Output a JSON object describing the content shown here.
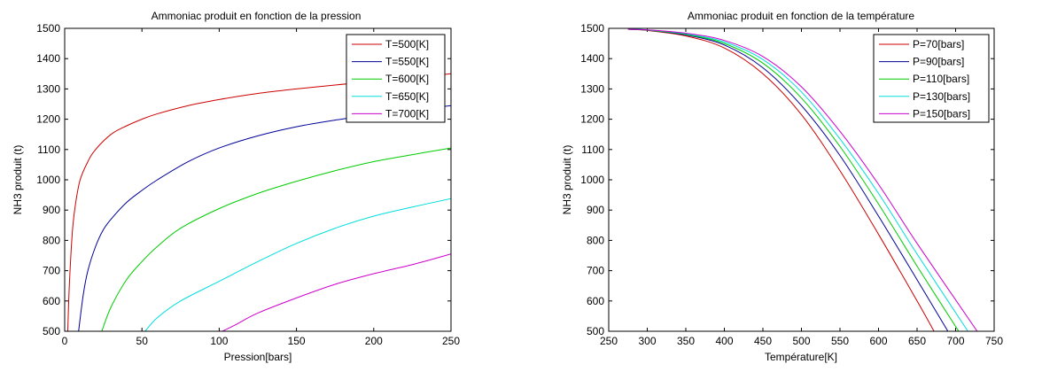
{
  "chart_data": [
    {
      "type": "line",
      "title": "Ammoniac produit en fonction de la pression",
      "xlabel": "Pression[bars]",
      "ylabel": "NH3 produit (t)",
      "xlim": [
        0,
        250
      ],
      "ylim": [
        500,
        1500
      ],
      "xticks": [
        "0",
        "50",
        "100",
        "150",
        "200",
        "250"
      ],
      "yticks": [
        "500",
        "600",
        "700",
        "800",
        "900",
        "1000",
        "1100",
        "1200",
        "1300",
        "1400",
        "1500"
      ],
      "legend_position": "top-right",
      "series": [
        {
          "name": "T=500[K]",
          "color": "#cc0000",
          "x": [
            2,
            3,
            5,
            7,
            10,
            15,
            20,
            30,
            40,
            50,
            60,
            80,
            100,
            125,
            150,
            175,
            200,
            225,
            250
          ],
          "y": [
            500,
            650,
            830,
            920,
            1000,
            1060,
            1100,
            1150,
            1178,
            1200,
            1218,
            1245,
            1265,
            1285,
            1300,
            1313,
            1325,
            1337,
            1350
          ]
        },
        {
          "name": "T=550[K]",
          "color": "#000099",
          "x": [
            9,
            12,
            15,
            20,
            25,
            30,
            40,
            50,
            60,
            80,
            100,
            125,
            150,
            175,
            200,
            225,
            250
          ],
          "y": [
            500,
            620,
            700,
            780,
            835,
            870,
            925,
            965,
            1000,
            1060,
            1105,
            1145,
            1175,
            1197,
            1215,
            1230,
            1245
          ]
        },
        {
          "name": "T=600[K]",
          "color": "#00cc00",
          "x": [
            24,
            30,
            40,
            50,
            60,
            75,
            100,
            125,
            150,
            175,
            200,
            225,
            250
          ],
          "y": [
            500,
            580,
            670,
            730,
            780,
            840,
            905,
            955,
            995,
            1030,
            1060,
            1083,
            1105
          ]
        },
        {
          "name": "T=650[K]",
          "color": "#00dddd",
          "x": [
            52,
            60,
            75,
            100,
            125,
            150,
            175,
            200,
            225,
            250
          ],
          "y": [
            500,
            545,
            600,
            665,
            730,
            790,
            840,
            880,
            910,
            938
          ]
        },
        {
          "name": "T=700[K]",
          "color": "#cc00cc",
          "x": [
            102,
            110,
            125,
            150,
            175,
            200,
            225,
            250
          ],
          "y": [
            500,
            520,
            560,
            610,
            655,
            690,
            720,
            755
          ]
        }
      ]
    },
    {
      "type": "line",
      "title": "Ammoniac produit en fonction de la température",
      "xlabel": "Température[K]",
      "ylabel": "NH3 produit (t)",
      "xlim": [
        250,
        750
      ],
      "ylim": [
        500,
        1500
      ],
      "xticks": [
        "250",
        "300",
        "350",
        "400",
        "450",
        "500",
        "550",
        "600",
        "650",
        "700",
        "750"
      ],
      "yticks": [
        "500",
        "600",
        "700",
        "800",
        "900",
        "1000",
        "1100",
        "1200",
        "1300",
        "1400",
        "1500"
      ],
      "legend_position": "top-right",
      "series": [
        {
          "name": "P=70[bars]",
          "color": "#cc0000",
          "x": [
            275,
            300,
            350,
            400,
            450,
            500,
            550,
            600,
            650,
            672
          ],
          "y": [
            1497,
            1493,
            1475,
            1435,
            1350,
            1215,
            1030,
            820,
            600,
            500
          ]
        },
        {
          "name": "P=90[bars]",
          "color": "#000099",
          "x": [
            275,
            300,
            350,
            400,
            450,
            500,
            550,
            600,
            650,
            690
          ],
          "y": [
            1497,
            1494,
            1478,
            1445,
            1370,
            1245,
            1080,
            880,
            670,
            500
          ]
        },
        {
          "name": "P=110[bars]",
          "color": "#00cc00",
          "x": [
            275,
            300,
            350,
            400,
            450,
            500,
            550,
            600,
            650,
            704
          ],
          "y": [
            1497,
            1494,
            1480,
            1450,
            1385,
            1270,
            1110,
            920,
            715,
            500
          ]
        },
        {
          "name": "P=130[bars]",
          "color": "#00dddd",
          "x": [
            275,
            300,
            350,
            400,
            450,
            500,
            550,
            600,
            650,
            716
          ],
          "y": [
            1497,
            1495,
            1482,
            1455,
            1397,
            1290,
            1135,
            955,
            755,
            500
          ]
        },
        {
          "name": "P=150[bars]",
          "color": "#cc00cc",
          "x": [
            275,
            300,
            350,
            400,
            450,
            500,
            550,
            600,
            650,
            728
          ],
          "y": [
            1497,
            1495,
            1484,
            1460,
            1407,
            1307,
            1160,
            985,
            790,
            500
          ]
        }
      ]
    }
  ]
}
